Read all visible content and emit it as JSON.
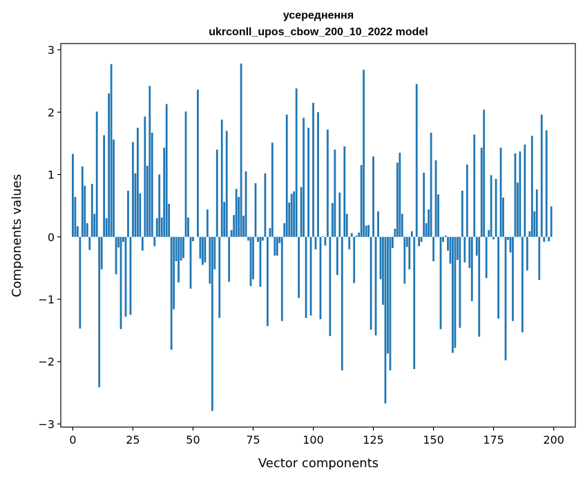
{
  "chart_data": {
    "type": "bar",
    "title": "усереднення",
    "subtitle": "ukrconll_upos_cbow_200_10_2022 model",
    "xlabel": "Vector components",
    "ylabel": "Components values",
    "xlim": [
      -5,
      209
    ],
    "ylim": [
      -3.05,
      3.1
    ],
    "xticks": [
      0,
      25,
      50,
      75,
      100,
      125,
      150,
      175,
      200
    ],
    "yticks": [
      -3,
      -2,
      -1,
      0,
      1,
      2,
      3
    ],
    "ytick_labels": [
      "−3",
      "−2",
      "−1",
      "0",
      "1",
      "2",
      "3"
    ],
    "bar_color": "#1f77b4",
    "categories_start": 0,
    "values": [
      1.33,
      0.64,
      0.17,
      -1.47,
      1.13,
      0.82,
      0.22,
      -0.21,
      0.85,
      0.37,
      2.01,
      -2.41,
      -0.52,
      1.63,
      0.3,
      2.3,
      2.77,
      1.56,
      -0.6,
      -0.17,
      -1.48,
      -0.08,
      -1.28,
      0.74,
      -1.25,
      1.52,
      1.02,
      1.75,
      0.7,
      -0.22,
      1.93,
      1.14,
      2.42,
      1.67,
      -0.15,
      0.3,
      1.0,
      0.31,
      1.43,
      2.13,
      0.53,
      -1.81,
      -1.16,
      -0.39,
      -0.73,
      -0.38,
      -0.34,
      2.01,
      0.31,
      -0.83,
      -0.07,
      0.0,
      2.36,
      -0.35,
      -0.45,
      -0.41,
      0.44,
      -0.75,
      -2.79,
      -0.52,
      1.4,
      -1.3,
      1.88,
      0.56,
      1.7,
      -0.72,
      0.11,
      0.35,
      0.77,
      0.64,
      2.78,
      0.34,
      1.05,
      -0.06,
      -0.79,
      -0.68,
      0.86,
      -0.08,
      -0.8,
      -0.06,
      1.02,
      -1.43,
      0.14,
      1.51,
      -0.3,
      -0.3,
      -0.1,
      -1.35,
      0.22,
      1.96,
      0.55,
      0.69,
      0.73,
      2.38,
      -0.98,
      0.8,
      1.91,
      -1.3,
      1.75,
      -1.26,
      2.15,
      -0.2,
      2.0,
      -1.32,
      0.01,
      -0.14,
      1.72,
      -1.59,
      0.54,
      1.4,
      -0.61,
      0.71,
      -2.14,
      1.45,
      0.37,
      -0.2,
      0.06,
      -0.74,
      0.02,
      0.07,
      1.15,
      2.68,
      0.18,
      0.19,
      -1.49,
      1.29,
      -1.58,
      0.41,
      -0.68,
      -1.09,
      -2.67,
      -1.87,
      -2.14,
      -0.18,
      0.13,
      1.19,
      1.35,
      0.37,
      -0.75,
      -0.16,
      -0.52,
      0.09,
      -2.12,
      2.45,
      -0.15,
      -0.08,
      1.03,
      0.22,
      0.44,
      1.67,
      -0.39,
      1.23,
      0.68,
      -1.48,
      -0.08,
      0.02,
      -0.22,
      -0.43,
      -1.86,
      -1.78,
      -0.37,
      -1.46,
      0.74,
      -0.41,
      1.16,
      -0.5,
      -1.03,
      1.64,
      -0.3,
      -1.6,
      1.43,
      2.04,
      -0.66,
      0.11,
      0.99,
      -0.04,
      0.93,
      -1.31,
      1.43,
      0.63,
      -1.98,
      -0.05,
      -0.25,
      -1.35,
      1.34,
      0.87,
      1.37,
      -1.53,
      1.48,
      -0.54,
      0.09,
      1.62,
      0.41,
      0.76,
      -0.69,
      1.96,
      -0.08,
      1.71,
      -0.07,
      0.49
    ]
  }
}
